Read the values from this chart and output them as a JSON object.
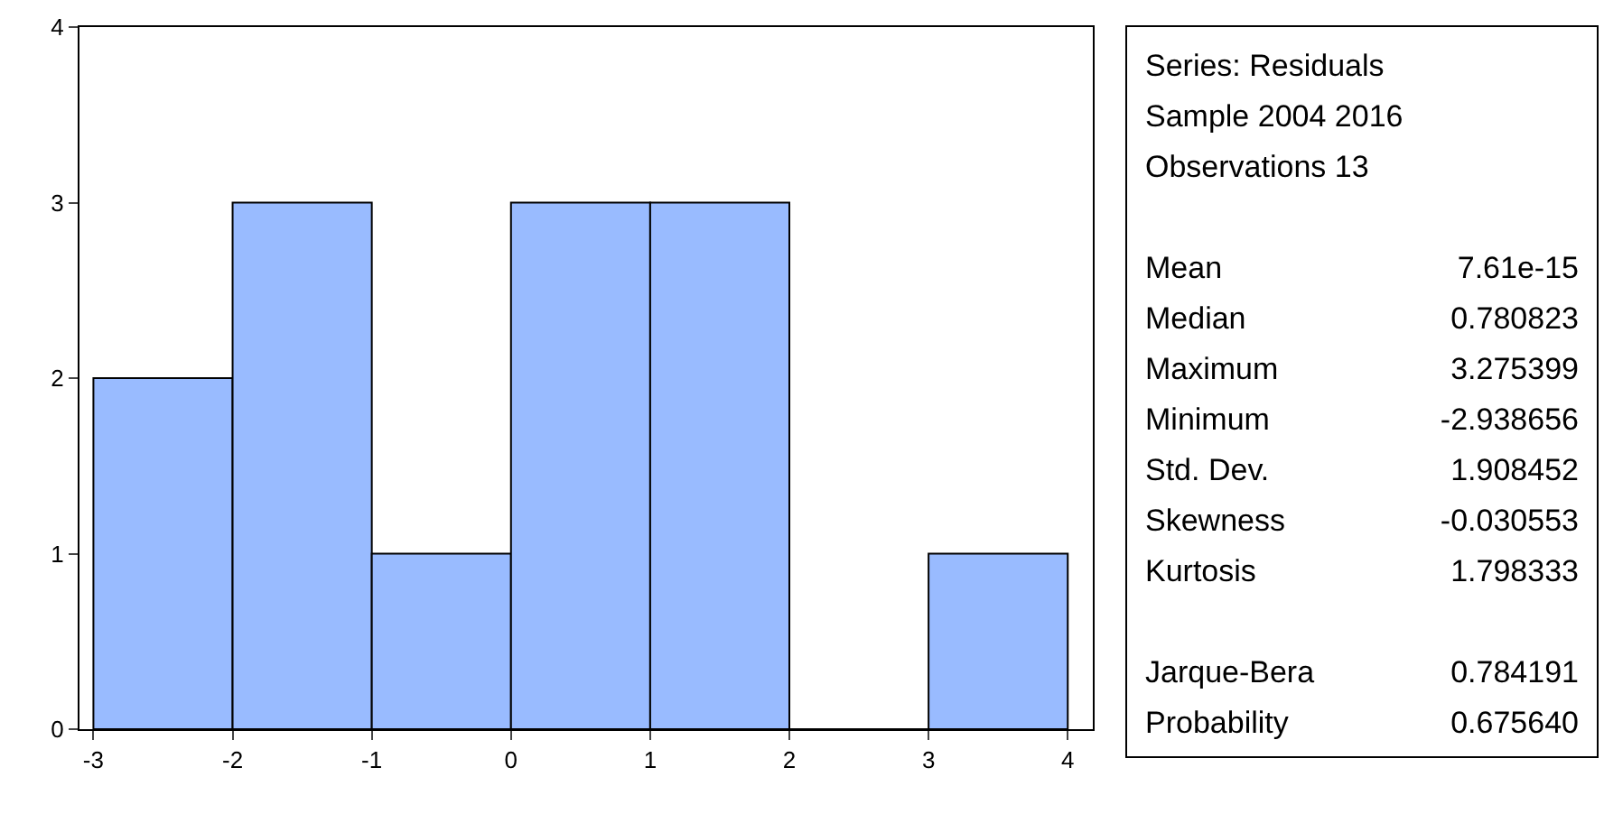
{
  "chart_data": [
    {
      "type": "histogram",
      "bins": [
        -3,
        -2,
        -1,
        0,
        1,
        2,
        3,
        4
      ],
      "values": [
        2,
        3,
        1,
        3,
        3,
        0,
        1
      ],
      "color": "#99bbff",
      "xlim": [
        -3.1,
        4.18
      ],
      "ylim": [
        0,
        4
      ],
      "xticks": [
        -3,
        -2,
        -1,
        0,
        1,
        2,
        3,
        4
      ],
      "yticks": [
        0,
        1,
        2,
        3,
        4
      ]
    },
    {
      "type": "other",
      "annotations": [
        "Series: Residuals",
        "Sample 2004 2016",
        "Observations 13"
      ],
      "categories": [
        "Mean",
        "Median",
        "Maximum",
        "Minimum",
        "Std. Dev.",
        "Skewness",
        "Kurtosis",
        null,
        "Jarque-Bera",
        "Probability"
      ],
      "value_labels": [
        "7.61e-15",
        "0.780823",
        "3.275399",
        "-2.938656",
        "1.908452",
        "-0.030553",
        "1.798333",
        null,
        "0.784191",
        "0.675640"
      ]
    }
  ]
}
